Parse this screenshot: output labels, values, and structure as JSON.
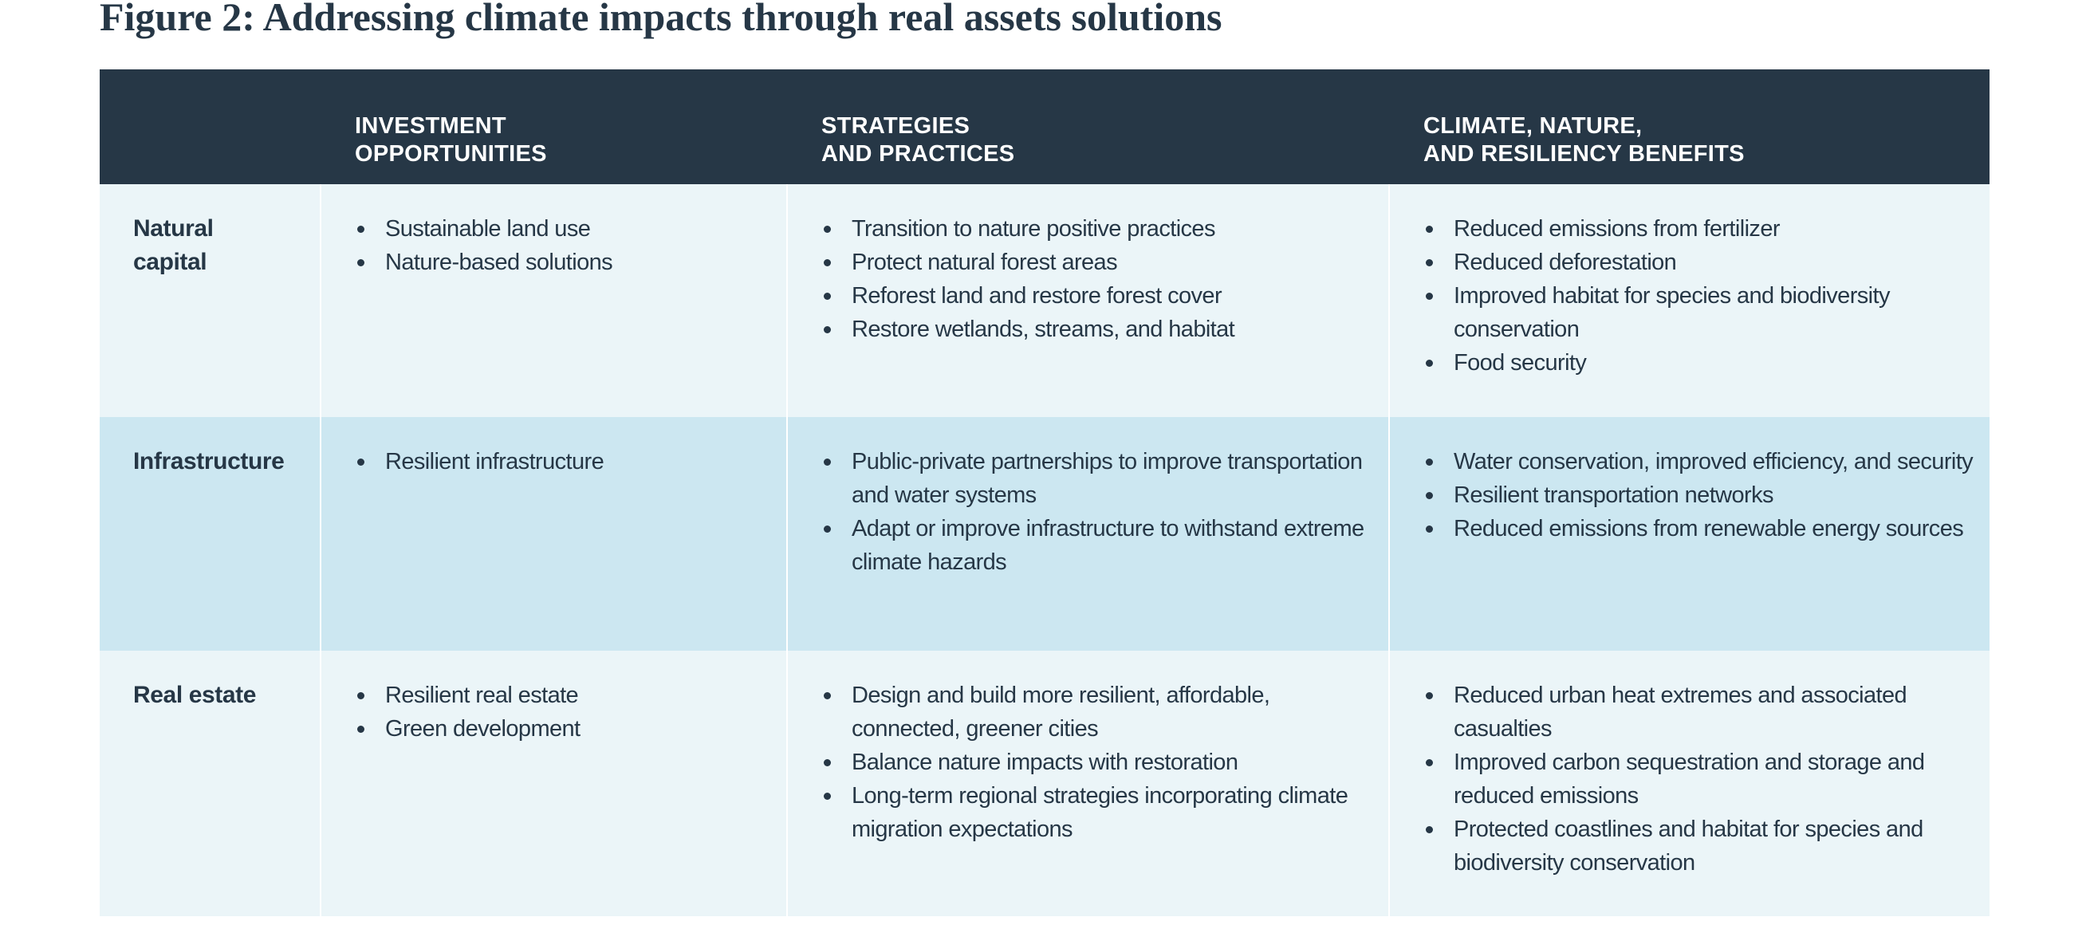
{
  "title": "Figure 2: Addressing climate impacts through real assets solutions",
  "colors": {
    "header_bg": "#263746",
    "row_light": "#ebf5f8",
    "row_mid": "#cce7f1",
    "text": "#263746"
  },
  "columns": [
    {
      "lines": [
        "INVESTMENT",
        "OPPORTUNITIES"
      ]
    },
    {
      "lines": [
        "STRATEGIES",
        "AND PRACTICES"
      ]
    },
    {
      "lines": [
        "CLIMATE, NATURE,",
        "AND RESILIENCY BENEFITS"
      ]
    }
  ],
  "rows": [
    {
      "label": [
        "Natural",
        "capital"
      ],
      "investment": [
        "Sustainable land use",
        "Nature-based solutions"
      ],
      "strategies": [
        "Transition to nature positive practices",
        "Protect natural forest areas",
        "Reforest land and restore forest cover",
        "Restore wetlands, streams, and habitat"
      ],
      "benefits": [
        "Reduced emissions from fertilizer",
        "Reduced deforestation",
        "Improved habitat for species and biodiversity conservation",
        "Food security"
      ]
    },
    {
      "label": [
        "Infrastructure"
      ],
      "investment": [
        "Resilient infrastructure"
      ],
      "strategies": [
        "Public-private partnerships to improve transportation and water systems",
        "Adapt or improve infrastructure to withstand extreme climate hazards"
      ],
      "benefits": [
        "Water conservation, improved efficiency, and security",
        "Resilient transportation networks",
        "Reduced emissions from renewable energy sources"
      ]
    },
    {
      "label": [
        "Real estate"
      ],
      "investment": [
        "Resilient real estate",
        "Green development"
      ],
      "strategies": [
        "Design and build more resilient, affordable, connected, greener cities",
        "Balance nature impacts with restoration",
        "Long-term regional strategies incorporating climate migration expectations"
      ],
      "benefits": [
        "Reduced urban heat extremes and associated casualties",
        "Improved carbon sequestration and storage and reduced emissions",
        "Protected coastlines and habitat for species and biodiversity conservation"
      ]
    }
  ]
}
